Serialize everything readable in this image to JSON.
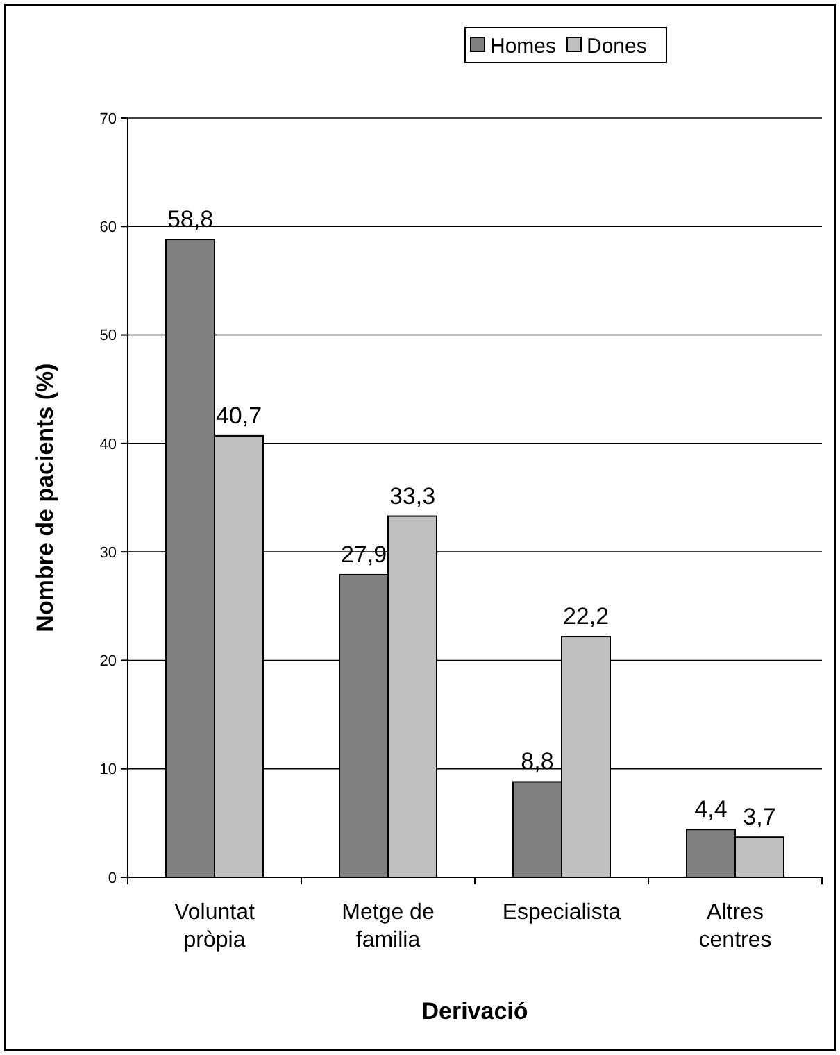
{
  "chart_data": {
    "type": "bar",
    "xlabel": "Derivació",
    "ylabel": "Nombre de pacients (%)",
    "categories": [
      "Voluntat pròpia",
      "Metge de familia",
      "Especialista",
      "Altres centres"
    ],
    "series": [
      {
        "name": "Homes",
        "color": "#808080",
        "values": [
          58.8,
          27.9,
          8.8,
          4.4
        ],
        "value_labels": [
          "58,8",
          "27,9",
          "8,8",
          "4,4"
        ]
      },
      {
        "name": "Dones",
        "color": "#c0c0c0",
        "values": [
          40.7,
          33.3,
          22.2,
          3.7
        ],
        "value_labels": [
          "40,7",
          "33,3",
          "22,2",
          "3,7"
        ]
      }
    ],
    "ylim": [
      0,
      70
    ],
    "yticks": [
      0,
      10,
      20,
      30,
      40,
      50,
      60,
      70
    ],
    "grid": "y",
    "legend": "top"
  }
}
